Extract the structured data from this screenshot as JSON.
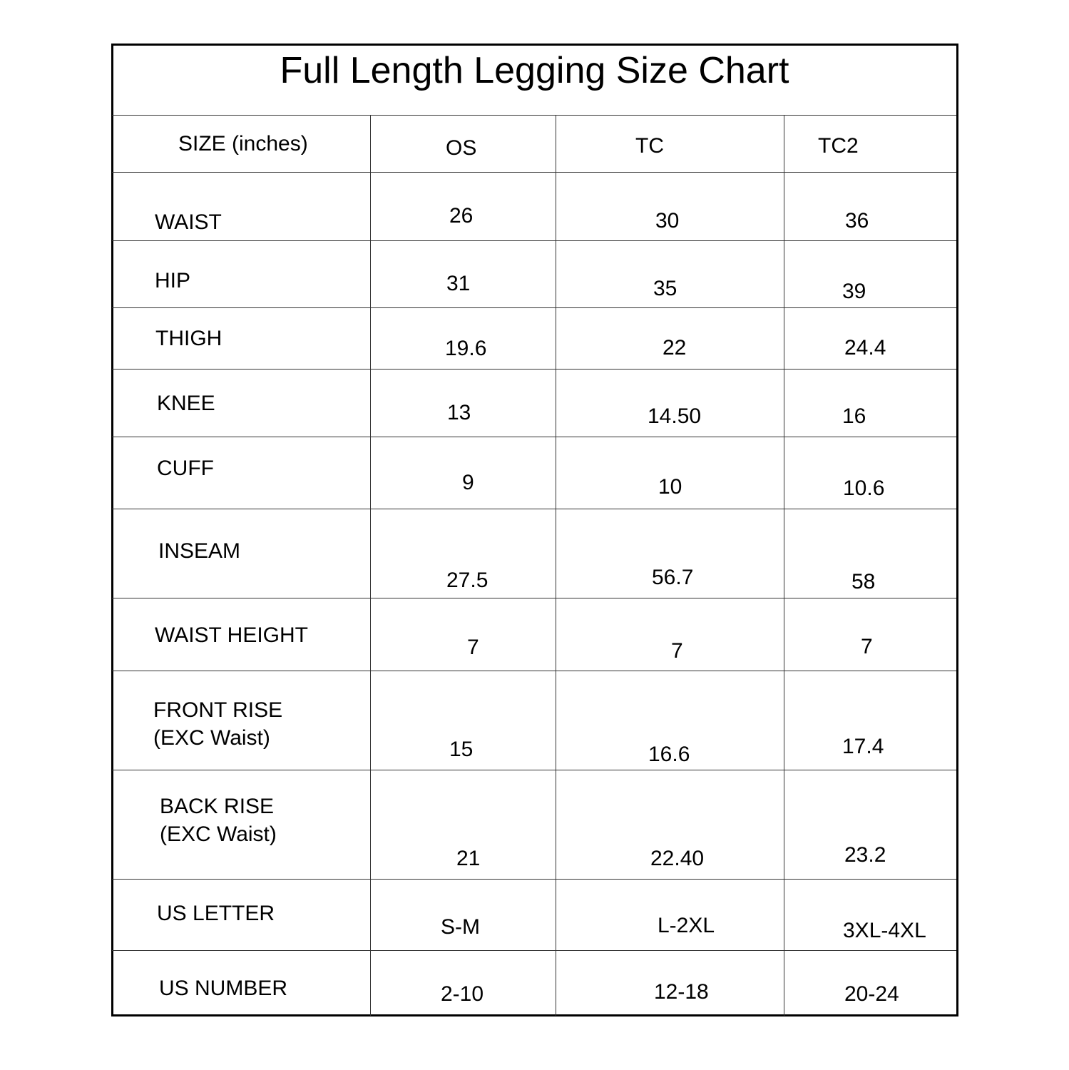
{
  "title": "Full Length Legging Size Chart",
  "header": {
    "label": "SIZE (inches)",
    "columns": [
      "OS",
      "TC",
      "TC2"
    ]
  },
  "rows": [
    {
      "label": [
        "WAIST"
      ],
      "values": [
        "26",
        "30",
        "36"
      ]
    },
    {
      "label": [
        "HIP"
      ],
      "values": [
        "31",
        "35",
        "39"
      ]
    },
    {
      "label": [
        "THIGH"
      ],
      "values": [
        "19.6",
        "22",
        "24.4"
      ]
    },
    {
      "label": [
        "KNEE"
      ],
      "values": [
        "13",
        "14.50",
        "16"
      ]
    },
    {
      "label": [
        "CUFF"
      ],
      "values": [
        "9",
        "10",
        "10.6"
      ]
    },
    {
      "label": [
        "INSEAM"
      ],
      "values": [
        "27.5",
        "56.7",
        "58"
      ]
    },
    {
      "label": [
        "WAIST HEIGHT"
      ],
      "values": [
        "7",
        "7",
        "7"
      ]
    },
    {
      "label": [
        "FRONT RISE",
        "(EXC Waist)"
      ],
      "values": [
        "15",
        "16.6",
        "17.4"
      ]
    },
    {
      "label": [
        "BACK RISE",
        "(EXC Waist)"
      ],
      "values": [
        "21",
        "22.40",
        "23.2"
      ]
    },
    {
      "label": [
        "US LETTER"
      ],
      "values": [
        "S-M",
        "L-2XL",
        "3XL-4XL"
      ]
    },
    {
      "label": [
        "US NUMBER"
      ],
      "values": [
        "2-10",
        "12-18",
        "20-24"
      ]
    }
  ]
}
